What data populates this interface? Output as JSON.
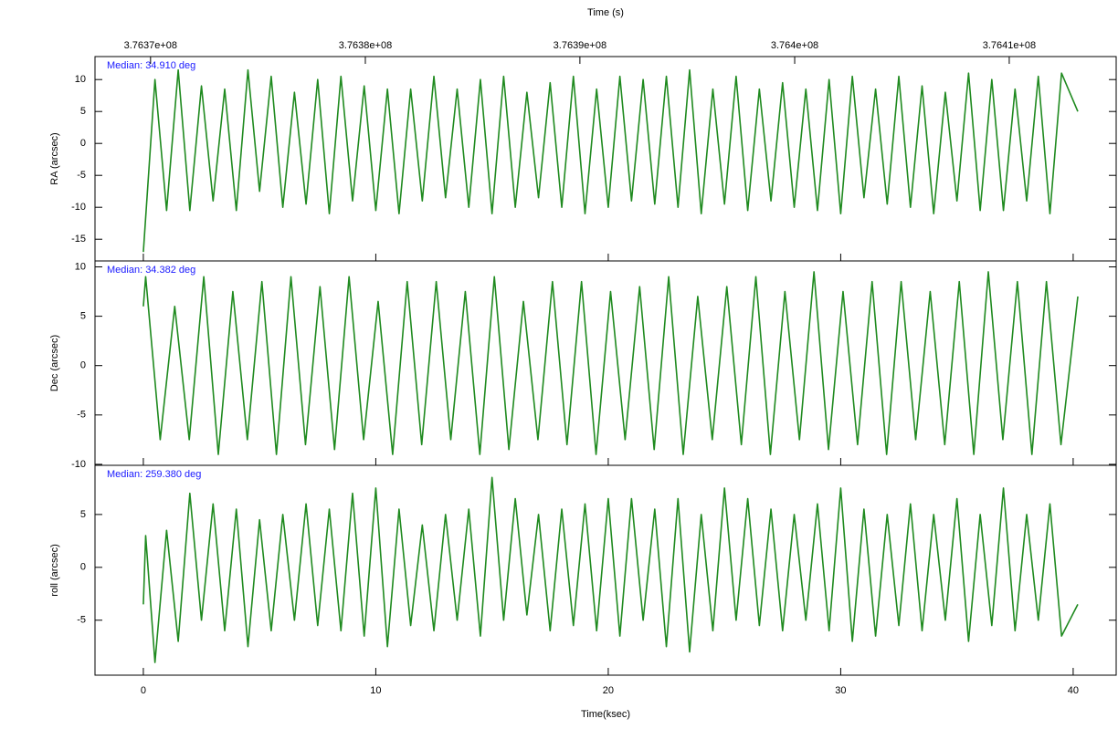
{
  "chart_data": [
    {
      "type": "line",
      "title": "Time (s)",
      "ylabel": "RA (arcsec)",
      "annotation": "Median: 34.910 deg",
      "top_xticks": [
        {
          "value": 0.31,
          "label": "3.7637e+08"
        },
        {
          "value": 9.55,
          "label": "3.7638e+08"
        },
        {
          "value": 18.78,
          "label": "3.7639e+08"
        },
        {
          "value": 28.02,
          "label": "3.764e+08"
        },
        {
          "value": 37.25,
          "label": "3.7641e+08"
        }
      ],
      "xlim": [
        -2.08,
        41.85
      ],
      "ylim": [
        -18.4,
        13.6
      ],
      "yticks": [
        -15,
        -10,
        -5,
        0,
        5,
        10
      ],
      "x": [
        0,
        0.5,
        1,
        1.5,
        2,
        2.5,
        3,
        3.5,
        4,
        4.5,
        5,
        5.5,
        6,
        6.5,
        7,
        7.5,
        8,
        8.5,
        9,
        9.5,
        10,
        10.5,
        11,
        11.5,
        12,
        12.5,
        13,
        13.5,
        14,
        14.5,
        15,
        15.5,
        16,
        16.5,
        17,
        17.5,
        18,
        18.5,
        19,
        19.5,
        20,
        20.5,
        21,
        21.5,
        22,
        22.5,
        23,
        23.5,
        24,
        24.5,
        25,
        25.5,
        26,
        26.5,
        27,
        27.5,
        28,
        28.5,
        29,
        29.5,
        30,
        30.5,
        31,
        31.5,
        32,
        32.5,
        33,
        33.5,
        34,
        34.5,
        35,
        35.5,
        36,
        36.5,
        37,
        37.5,
        38,
        38.5,
        39,
        39.5,
        40.2
      ],
      "series": [
        {
          "color": "#1f8a1f",
          "values": [
            -17,
            10,
            -10.5,
            11.5,
            -10.5,
            9,
            -9,
            8.5,
            -10.5,
            11.5,
            -7.5,
            10.5,
            -10,
            8,
            -9.5,
            10,
            -11,
            10.5,
            -9,
            9,
            -10.5,
            8.5,
            -11,
            8.5,
            -9,
            10.5,
            -8.5,
            8.5,
            -10,
            10,
            -11,
            10.5,
            -10,
            8,
            -8.5,
            9.5,
            -10,
            10.5,
            -11,
            8.5,
            -10,
            10.5,
            -9,
            10,
            -9.5,
            10.5,
            -10,
            11.5,
            -11,
            8.5,
            -9.5,
            10.5,
            -10.5,
            8.5,
            -9,
            9.5,
            -10,
            8.5,
            -10.5,
            10,
            -11,
            10.5,
            -8.5,
            8.5,
            -9.5,
            10.5,
            -10,
            9,
            -11,
            8,
            -9,
            11,
            -10.5,
            10,
            -10.5,
            8.5,
            -9,
            10.5,
            -11,
            11,
            5
          ]
        }
      ]
    },
    {
      "type": "line",
      "ylabel": "Dec (arcsec)",
      "annotation": "Median: 34.382 deg",
      "xlim": [
        -2.08,
        41.85
      ],
      "ylim": [
        -10.1,
        10.6
      ],
      "yticks": [
        -10,
        -5,
        0,
        5,
        10
      ],
      "x": [
        0,
        0.1,
        0.725,
        1.35,
        1.975,
        2.6,
        3.225,
        3.85,
        4.475,
        5.1,
        5.725,
        6.35,
        6.975,
        7.6,
        8.225,
        8.85,
        9.475,
        10.1,
        10.725,
        11.35,
        11.975,
        12.6,
        13.225,
        13.85,
        14.475,
        15.1,
        15.725,
        16.35,
        16.975,
        17.6,
        18.225,
        18.85,
        19.475,
        20.1,
        20.725,
        21.35,
        21.975,
        22.6,
        23.225,
        23.85,
        24.475,
        25.1,
        25.725,
        26.35,
        26.975,
        27.6,
        28.225,
        28.85,
        29.475,
        30.1,
        30.725,
        31.35,
        31.975,
        32.6,
        33.225,
        33.85,
        34.475,
        35.1,
        35.725,
        36.35,
        36.975,
        37.6,
        38.225,
        38.85,
        39.475,
        40.2
      ],
      "series": [
        {
          "color": "#1f8a1f",
          "values": [
            6,
            9,
            -7.5,
            6,
            -7.5,
            9,
            -9,
            7.5,
            -7.5,
            8.5,
            -9,
            9,
            -8,
            8,
            -8.5,
            9,
            -7.5,
            6.5,
            -9,
            8.5,
            -8,
            8.5,
            -7.5,
            7.5,
            -9,
            9,
            -8.5,
            6.5,
            -7.5,
            8.5,
            -8,
            8.5,
            -9,
            7.5,
            -7.5,
            8,
            -8.5,
            9,
            -9,
            7,
            -7.5,
            8,
            -8,
            9,
            -9,
            7.5,
            -7.5,
            9.5,
            -8.5,
            7.5,
            -8,
            8.5,
            -9,
            8.5,
            -7.5,
            7.5,
            -8,
            8.5,
            -9,
            9.5,
            -7.5,
            8.5,
            -9,
            8.5,
            -8,
            7
          ]
        }
      ]
    },
    {
      "type": "line",
      "ylabel": "roll (arcsec)",
      "annotation": "Median: 259.380 deg",
      "xlabel": "Time(ksec)",
      "xlim": [
        -2.08,
        41.85
      ],
      "xticks": [
        0,
        10,
        20,
        30,
        40
      ],
      "ylim": [
        -10.2,
        9.65
      ],
      "yticks": [
        -5,
        0,
        5
      ],
      "x": [
        0,
        0.1,
        0.5,
        1,
        1.5,
        2,
        2.5,
        3,
        3.5,
        4,
        4.5,
        5,
        5.5,
        6,
        6.5,
        7,
        7.5,
        8,
        8.5,
        9,
        9.5,
        10,
        10.5,
        11,
        11.5,
        12,
        12.5,
        13,
        13.5,
        14,
        14.5,
        15,
        15.5,
        16,
        16.5,
        17,
        17.5,
        18,
        18.5,
        19,
        19.5,
        20,
        20.5,
        21,
        21.5,
        22,
        22.5,
        23,
        23.5,
        24,
        24.5,
        25,
        25.5,
        26,
        26.5,
        27,
        27.5,
        28,
        28.5,
        29,
        29.5,
        30,
        30.5,
        31,
        31.5,
        32,
        32.5,
        33,
        33.5,
        34,
        34.5,
        35,
        35.5,
        36,
        36.5,
        37,
        37.5,
        38,
        38.5,
        39,
        39.5,
        40.2
      ],
      "series": [
        {
          "color": "#1f8a1f",
          "values": [
            -3.5,
            3,
            -9,
            3.5,
            -7,
            7,
            -5,
            6,
            -6,
            5.5,
            -7.5,
            4.5,
            -6,
            5,
            -5,
            6,
            -5.5,
            5.5,
            -6,
            7,
            -6.5,
            7.5,
            -7.5,
            5.5,
            -5.5,
            4,
            -6,
            5,
            -5,
            5.5,
            -6.5,
            8.5,
            -5,
            6.5,
            -4.5,
            5,
            -6,
            5.5,
            -5.5,
            6,
            -6,
            6.5,
            -6.5,
            6.5,
            -5,
            5.5,
            -7.5,
            6.5,
            -8,
            5,
            -6,
            7.5,
            -5,
            6.5,
            -5.5,
            5.5,
            -6,
            5,
            -5,
            6,
            -6,
            7.5,
            -7,
            5.5,
            -6.5,
            5,
            -5.5,
            6,
            -6,
            5,
            -5,
            6.5,
            -7,
            5,
            -5.5,
            7.5,
            -6,
            5,
            -5,
            6,
            -6.5,
            -3.5
          ]
        }
      ]
    }
  ]
}
